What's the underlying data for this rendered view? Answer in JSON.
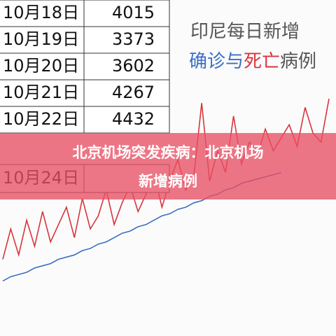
{
  "table": {
    "rows": [
      [
        "10月18日",
        "4015"
      ],
      [
        "10月19日",
        "3373"
      ],
      [
        "10月20日",
        "3602"
      ],
      [
        "10月21日",
        "4267"
      ],
      [
        "10月22日",
        "4432"
      ],
      [
        "10月24日",
        ""
      ]
    ]
  },
  "chart_data": {
    "type": "line",
    "title": [
      "印尼每日新增",
      "确诊与",
      "死亡",
      "病例"
    ],
    "ylim": [
      0,
      5000
    ],
    "series": [
      {
        "color": "#d9343b",
        "values": [
          800,
          1500,
          900,
          1700,
          1100,
          1900,
          1200,
          1600,
          2000,
          1300,
          2200,
          1500,
          1800,
          2400,
          1600,
          2100,
          2500,
          1900,
          2300,
          2800,
          2000,
          2600,
          3100,
          2400,
          2700,
          4400,
          2600,
          3300,
          2800,
          4100,
          3000,
          3500,
          3200,
          3800,
          3300,
          3600,
          3900,
          3400,
          4300,
          3700,
          3500,
          4500
        ]
      },
      {
        "color": "#3b6fc4",
        "values": [
          300,
          400,
          450,
          500,
          600,
          650,
          700,
          800,
          850,
          900,
          1000,
          1050,
          1150,
          1200,
          1300,
          1400,
          1450,
          1550,
          1600,
          1700,
          1800,
          1850,
          1950,
          2000,
          2100,
          2150,
          2250,
          2300,
          2400,
          2450,
          2550,
          2600,
          2650,
          2700,
          2750,
          2800
        ]
      }
    ]
  },
  "banner": [
    "北京机场突发疾病：北京机场",
    "新增病例"
  ]
}
